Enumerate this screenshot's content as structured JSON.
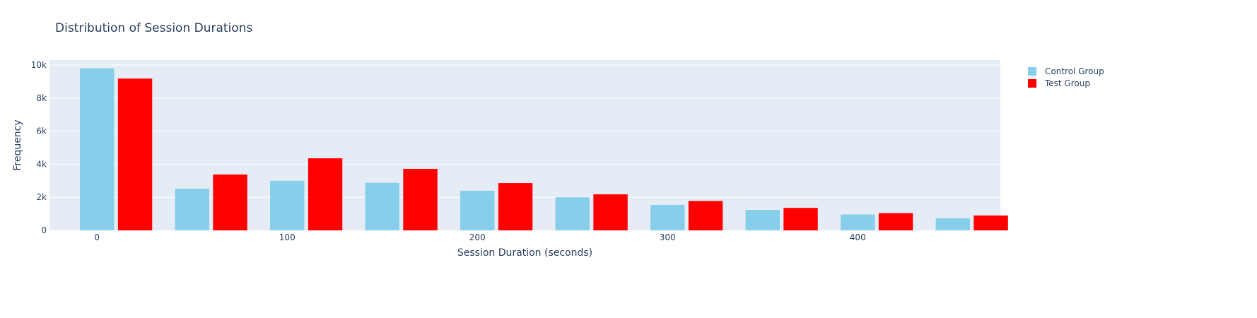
{
  "chart_data": {
    "type": "bar",
    "title": "Distribution of Session Durations",
    "xlabel": "Session Duration (seconds)",
    "ylabel": "Frequency",
    "x_range": [
      -25,
      475
    ],
    "ylim": [
      0,
      10300
    ],
    "x_tick_values": [
      0,
      100,
      200,
      300,
      400
    ],
    "x_tick_labels": [
      "0",
      "100",
      "200",
      "300",
      "400"
    ],
    "y_tick_values": [
      0,
      2000,
      4000,
      6000,
      8000,
      10000
    ],
    "y_tick_labels": [
      "0",
      "2k",
      "4k",
      "6k",
      "8k",
      "10k"
    ],
    "bin_starts": [
      0,
      50,
      100,
      150,
      200,
      250,
      300,
      350,
      400,
      450
    ],
    "bin_width": 50,
    "grid": true,
    "legend_position": "top-right",
    "series": [
      {
        "name": "Control Group",
        "color": "#87ceeb",
        "values": [
          9800,
          2520,
          3000,
          2880,
          2400,
          2000,
          1540,
          1240,
          960,
          730
        ]
      },
      {
        "name": "Test Group",
        "color": "#ff0000",
        "values": [
          9180,
          3380,
          4360,
          3720,
          2860,
          2180,
          1780,
          1360,
          1040,
          900
        ]
      }
    ]
  },
  "colors": {
    "plot_background": "#e5ecf6",
    "grid": "#ffffff",
    "text": "#2a3f5f"
  }
}
